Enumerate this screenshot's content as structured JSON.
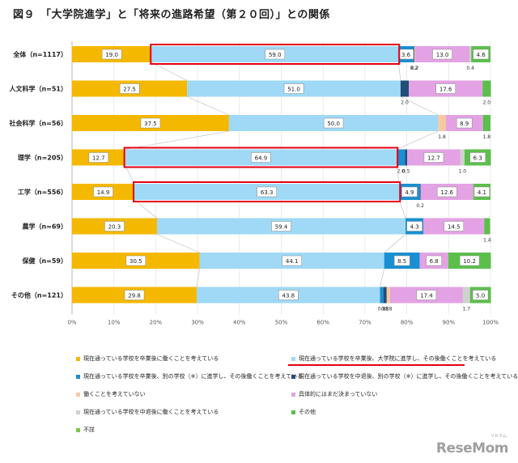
{
  "figure": {
    "title": "図９　「大学院進学」と「将来の進路希望（第２０回）」との関係",
    "watermark": "ReseMom",
    "watermark_sub": "リセマム"
  },
  "chart_data": {
    "type": "stacked-bar-horizontal",
    "categories": [
      "全体（n=1117）",
      "人文科学（n=51）",
      "社会科学（n=56）",
      "理学（n=205）",
      "工学（n=556）",
      "農学（n=69）",
      "保健（n=59）",
      "その他（n=121）"
    ],
    "x_ticks": [
      "0%",
      "10%",
      "20%",
      "30%",
      "40%",
      "50%",
      "60%",
      "70%",
      "80%",
      "90%",
      "100%"
    ],
    "xlim": [
      0,
      100
    ],
    "grid": true,
    "highlighted_rows": [
      0,
      3,
      4
    ],
    "highlighted_series": 1,
    "colors": [
      "#f5b800",
      "#9fd9f6",
      "#1a8fd1",
      "#1f4e79",
      "#f8c9a0",
      "#e3a2e3",
      "#d0d0d0",
      "#5cbf4c"
    ],
    "series": [
      {
        "name": "現在通っている学校を卒業後に働くことを考えている",
        "values": [
          19.0,
          27.5,
          37.5,
          12.7,
          14.9,
          20.3,
          30.5,
          29.8
        ],
        "labels": [
          "19.0",
          "27.5",
          "37.5",
          "12.7",
          "14.9",
          "20.3",
          "30.5",
          "29.8"
        ]
      },
      {
        "name": "現在通っている学校を卒業後、大学院に進学し、その後働くことを考えている",
        "values": [
          59.0,
          51.0,
          50.0,
          64.9,
          63.3,
          59.4,
          44.1,
          43.8
        ],
        "labels": [
          "59.0",
          "51.0",
          "50.0",
          "64.9",
          "63.3",
          "59.4",
          "44.1",
          "43.8"
        ]
      },
      {
        "name": "現在通っている学校を卒業後、別の学校（※）に進学し、その後働くことを考えている",
        "values": [
          3.6,
          0,
          0,
          2.0,
          4.9,
          4.3,
          8.5,
          0.8
        ],
        "labels": [
          "3.6",
          "",
          "",
          "2.0",
          "4.9",
          "4.3",
          "8.5",
          "0.8"
        ]
      },
      {
        "name": "現在通っている学校を中退後、別の学校（※）に進学し、その後働くことを考えている",
        "values": [
          0.2,
          2.0,
          0,
          0.5,
          0.2,
          0,
          0,
          0.8
        ],
        "labels": [
          "0.2",
          "2.0",
          "",
          "0.5",
          "0.2",
          "",
          "",
          "0.8"
        ]
      },
      {
        "name": "働くことを考えていない",
        "values": [
          0.2,
          0,
          1.8,
          0,
          0,
          0,
          0,
          0.8
        ],
        "labels": [
          "0.2",
          "",
          "1.8",
          "",
          "",
          "",
          "",
          "0.8"
        ]
      },
      {
        "name": "具体的にはまだ決まっていない",
        "values": [
          13.0,
          17.6,
          8.9,
          12.7,
          12.6,
          14.5,
          6.8,
          17.4
        ],
        "labels": [
          "13.0",
          "17.6",
          "8.9",
          "12.7",
          "12.6",
          "14.5",
          "6.8",
          "17.4"
        ]
      },
      {
        "name": "現在通っている学校を中退後に働くことを考えている",
        "values": [
          0.4,
          0,
          0,
          1.0,
          0,
          0,
          0,
          1.7
        ],
        "labels": [
          "0.4",
          "",
          "",
          "1.0",
          "",
          "",
          "",
          "1.7"
        ]
      },
      {
        "name": "その他",
        "values": [
          4.6,
          2.0,
          1.8,
          6.3,
          4.1,
          1.4,
          10.2,
          5.0
        ],
        "labels": [
          "4.6",
          "2.0",
          "1.8",
          "6.3",
          "4.1",
          "1.4",
          "10.2",
          "5.0"
        ]
      }
    ],
    "legend_extra": "不詳",
    "legend_highlighted": "現在通っている学校を卒業後、大学院に進学し、その後働くことを考えている"
  }
}
